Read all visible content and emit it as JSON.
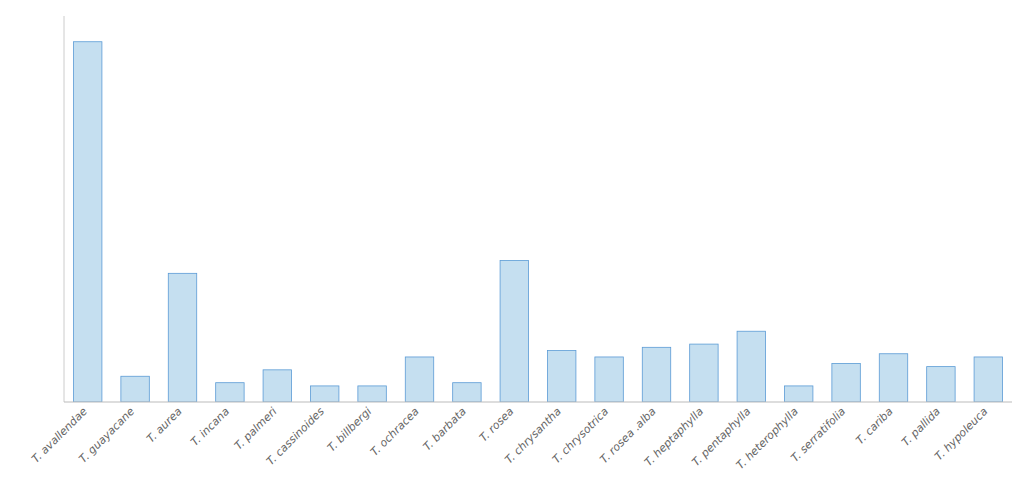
{
  "chart_data": {
    "type": "bar",
    "categories": [
      "T. avallendae",
      "T. guayacane",
      "T. aurea",
      "T. incana",
      "T. palmeri",
      "T. cassinoides",
      "T. billbergi",
      "T. ochracea",
      "T. barbata",
      "T. rosea",
      "T. chrysantha",
      "T. chrysotrica",
      "T. rosea .alba",
      "T. heptaphylla",
      "T. pentaphylla",
      "T. heterophylla",
      "T. serratifolia",
      "T. cariba",
      "T. pallida",
      "T. hypoleuca"
    ],
    "values": [
      56,
      4,
      20,
      3,
      5,
      2.5,
      2.5,
      7,
      3,
      22,
      8,
      7,
      8.5,
      9,
      11,
      2.5,
      6,
      7.5,
      5.5,
      7
    ],
    "color": "#c5dff0",
    "ylim": [
      0,
      60
    ],
    "yticks": [],
    "grid": false,
    "tick_labels": "x"
  }
}
